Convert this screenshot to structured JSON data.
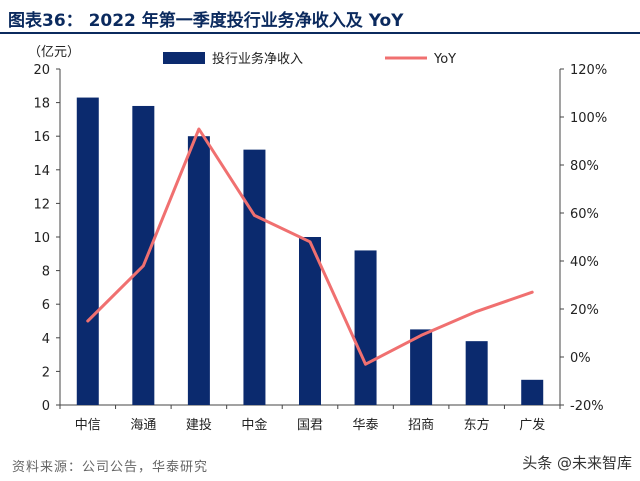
{
  "title": "图表36：  2022 年第一季度投行业务净收入及 YoY",
  "unit_label": "（亿元）",
  "source": "资料来源：公司公告，华泰研究",
  "watermark": "头条 @未来智库",
  "colors": {
    "bar": "#0b2a6e",
    "line": "#f07070",
    "title": "#0b2a5e"
  },
  "chart_data": {
    "type": "bar",
    "title": "2022 年第一季度投行业务净收入及 YoY",
    "categories": [
      "中信",
      "海通",
      "建投",
      "中金",
      "国君",
      "华泰",
      "招商",
      "东方",
      "广发"
    ],
    "series": [
      {
        "name": "投行业务净收入",
        "type": "bar",
        "axis": "left",
        "values": [
          18.3,
          17.8,
          16.0,
          15.2,
          10.0,
          9.2,
          4.5,
          3.8,
          1.5
        ]
      },
      {
        "name": "YoY",
        "type": "line",
        "axis": "right",
        "values": [
          15,
          38,
          95,
          59,
          48,
          -3,
          9,
          19,
          27
        ]
      }
    ],
    "y_left": {
      "min": 0,
      "max": 20,
      "step": 2,
      "ticks": [
        "0",
        "2",
        "4",
        "6",
        "8",
        "10",
        "12",
        "14",
        "16",
        "18",
        "20"
      ]
    },
    "y_right": {
      "min": -20,
      "max": 120,
      "step": 20,
      "ticks": [
        "-20%",
        "0%",
        "20%",
        "40%",
        "60%",
        "80%",
        "100%",
        "120%"
      ]
    },
    "legend": {
      "position": "top",
      "items": [
        "投行业务净收入",
        "YoY"
      ]
    }
  }
}
